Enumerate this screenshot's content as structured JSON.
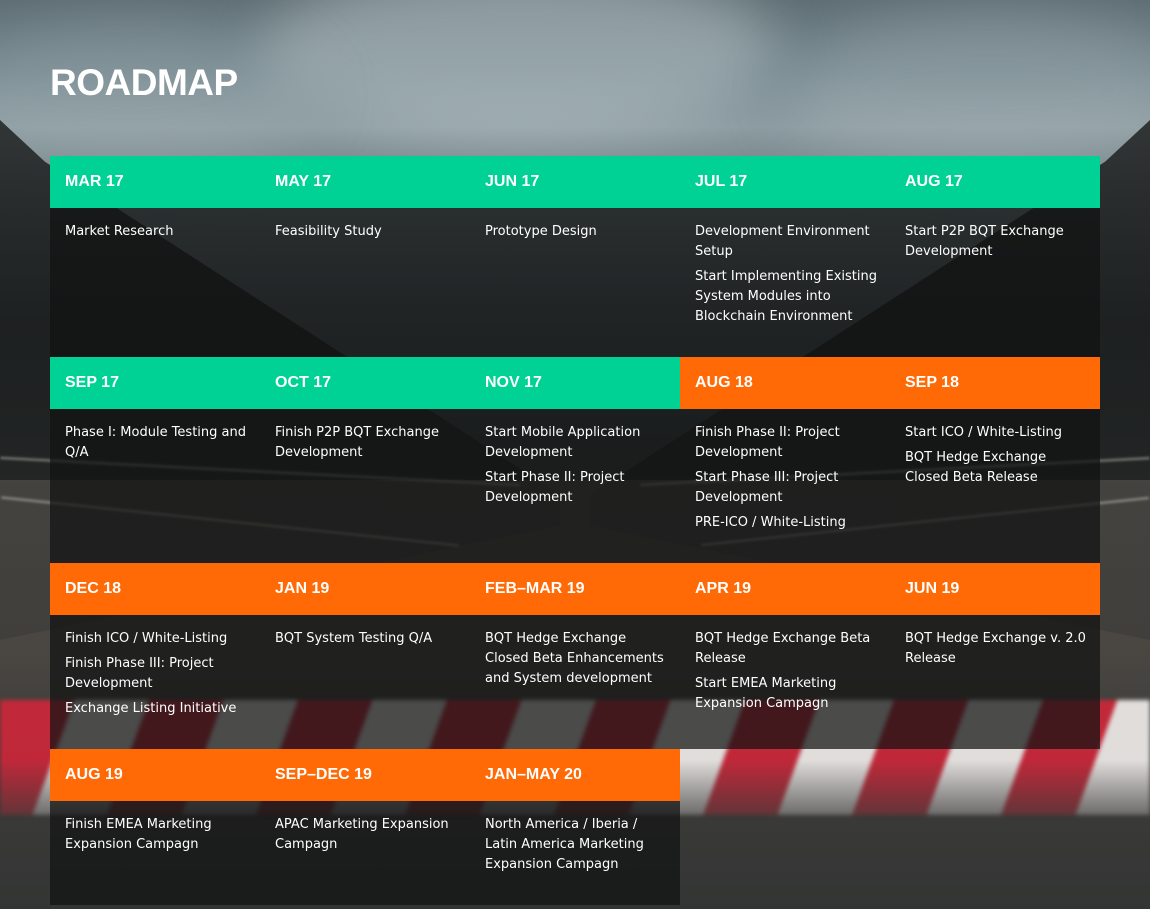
{
  "title": "ROADMAP",
  "colors": {
    "green": "#00d194",
    "orange": "#ff6a06",
    "panel": "rgba(16,18,18,0.72)"
  },
  "rows": [
    [
      {
        "date": "MAR 17",
        "color": "green",
        "items": [
          "Market Research"
        ]
      },
      {
        "date": "MAY 17",
        "color": "green",
        "items": [
          "Feasibility Study"
        ]
      },
      {
        "date": "JUN 17",
        "color": "green",
        "items": [
          "Prototype Design"
        ]
      },
      {
        "date": "JUL 17",
        "color": "green",
        "items": [
          "Development Environment Setup",
          "Start Implementing Existing System Modules into Blockchain Environment"
        ]
      },
      {
        "date": "AUG 17",
        "color": "green",
        "items": [
          "Start P2P BQT Exchange Development"
        ]
      }
    ],
    [
      {
        "date": "SEP 17",
        "color": "green",
        "items": [
          "Phase I: Module Testing and Q/A"
        ]
      },
      {
        "date": "OCT 17",
        "color": "green",
        "items": [
          "Finish P2P BQT Exchange Development"
        ]
      },
      {
        "date": "NOV 17",
        "color": "green",
        "items": [
          "Start Mobile Application Development",
          "Start Phase II: Project Development"
        ]
      },
      {
        "date": "AUG 18",
        "color": "orange",
        "items": [
          "Finish Phase II: Project Development",
          "Start Phase III: Project Development",
          "PRE-ICO / White-Listing"
        ]
      },
      {
        "date": "SEP 18",
        "color": "orange",
        "items": [
          "Start ICO / White-Listing",
          "BQT Hedge Exchange Closed Beta Release"
        ]
      }
    ],
    [
      {
        "date": "DEC 18",
        "color": "orange",
        "items": [
          "Finish ICO / White-Listing",
          "Finish Phase III: Project Development",
          "Exchange Listing Initiative"
        ]
      },
      {
        "date": "JAN 19",
        "color": "orange",
        "items": [
          "BQT System Testing Q/A"
        ]
      },
      {
        "date": "FEB–MAR 19",
        "color": "orange",
        "items": [
          "BQT Hedge Exchange Closed Beta Enhancements and System development"
        ]
      },
      {
        "date": "APR 19",
        "color": "orange",
        "items": [
          "BQT Hedge Exchange Beta Release",
          "Start EMEA Marketing Expansion Campagn"
        ]
      },
      {
        "date": "JUN 19",
        "color": "orange",
        "items": [
          "BQT Hedge Exchange v. 2.0 Release"
        ]
      }
    ],
    [
      {
        "date": "AUG 19",
        "color": "orange",
        "items": [
          "Finish EMEA Marketing Expansion Campagn"
        ]
      },
      {
        "date": "SEP–DEC 19",
        "color": "orange",
        "items": [
          "APAC Marketing Expansion Campagn"
        ]
      },
      {
        "date": "JAN–MAY 20",
        "color": "orange",
        "items": [
          "North America / Iberia / Latin America Marketing Expansion Campagn"
        ]
      }
    ]
  ]
}
